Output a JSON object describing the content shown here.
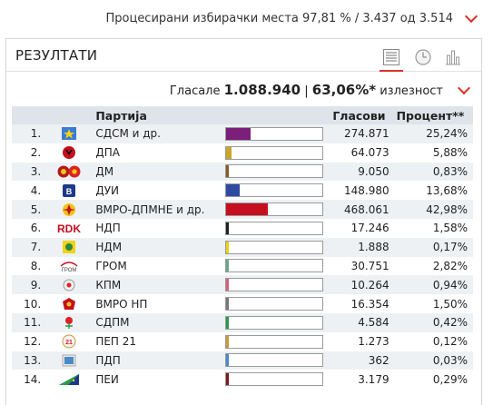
{
  "top": {
    "processed_label": "Процесирани избирачки места",
    "processed_value": "97,81 % / 3.437 од 3.514"
  },
  "panel": {
    "title": "РЕЗУЛТАТИ",
    "views": [
      "table-icon",
      "clock-icon",
      "bar-chart-icon"
    ]
  },
  "summary": {
    "votes_label": "Гласале",
    "votes_value": "1.088.940",
    "separator": "|",
    "turnout_value": "63,06%*",
    "turnout_label": "излезност"
  },
  "table": {
    "headers": {
      "party": "Партија",
      "votes": "Гласови",
      "pct": "Процент**"
    },
    "rows": [
      {
        "num": "1.",
        "party": "СДСМ и др.",
        "votes": "274.871",
        "pct": "25,24%",
        "share": 0.2524,
        "color": "#7b1f7a",
        "logo": "sdsm-logo-icon"
      },
      {
        "num": "2.",
        "party": "ДПА",
        "votes": "64.073",
        "pct": "5,88%",
        "share": 0.0588,
        "color": "#c9a62a",
        "logo": "dpa-logo-icon"
      },
      {
        "num": "3.",
        "party": "ДМ",
        "votes": "9.050",
        "pct": "0,83%",
        "share": 0.0083,
        "color": "#8a5a2a",
        "logo": "dm-logo-icon"
      },
      {
        "num": "4.",
        "party": "ДУИ",
        "votes": "148.980",
        "pct": "13,68%",
        "share": 0.1368,
        "color": "#2f4aa0",
        "logo": "dui-logo-icon"
      },
      {
        "num": "5.",
        "party": "ВМРО-ДПМНЕ и др.",
        "votes": "468.061",
        "pct": "42,98%",
        "share": 0.4298,
        "color": "#c4101e",
        "logo": "vmro-dpmne-logo-icon"
      },
      {
        "num": "6.",
        "party": "НДП",
        "votes": "17.246",
        "pct": "1,58%",
        "share": 0.0158,
        "color": "#222222",
        "logo": "ndp-logo-icon"
      },
      {
        "num": "7.",
        "party": "НДМ",
        "votes": "1.888",
        "pct": "0,17%",
        "share": 0.0017,
        "color": "#e6d21a",
        "logo": "ndm-logo-icon"
      },
      {
        "num": "8.",
        "party": "ГРОМ",
        "votes": "30.751",
        "pct": "2,82%",
        "share": 0.0282,
        "color": "#6aa58a",
        "logo": "grom-logo-icon"
      },
      {
        "num": "9.",
        "party": "КПМ",
        "votes": "10.264",
        "pct": "0,94%",
        "share": 0.0094,
        "color": "#d9607a",
        "logo": "kpm-logo-icon"
      },
      {
        "num": "10.",
        "party": "ВМРО НП",
        "votes": "16.354",
        "pct": "1,50%",
        "share": 0.015,
        "color": "#777777",
        "logo": "vmro-np-logo-icon"
      },
      {
        "num": "11.",
        "party": "СДПМ",
        "votes": "4.584",
        "pct": "0,42%",
        "share": 0.0042,
        "color": "#2a9a4a",
        "logo": "sdpm-logo-icon"
      },
      {
        "num": "12.",
        "party": "ПЕП 21",
        "votes": "1.273",
        "pct": "0,12%",
        "share": 0.0012,
        "color": "#c89a3a",
        "logo": "pep21-logo-icon"
      },
      {
        "num": "13.",
        "party": "ПДП",
        "votes": "362",
        "pct": "0,03%",
        "share": 0.0003,
        "color": "#4a8ac8",
        "logo": "pdp-logo-icon"
      },
      {
        "num": "14.",
        "party": "ПЕИ",
        "votes": "3.179",
        "pct": "0,29%",
        "share": 0.0029,
        "color": "#7a1a1a",
        "logo": "pei-logo-icon"
      }
    ]
  },
  "colors": {
    "accent": "#d9322a",
    "header_bg": "#dfe4ea",
    "row_alt_bg": "#eef1f4"
  }
}
